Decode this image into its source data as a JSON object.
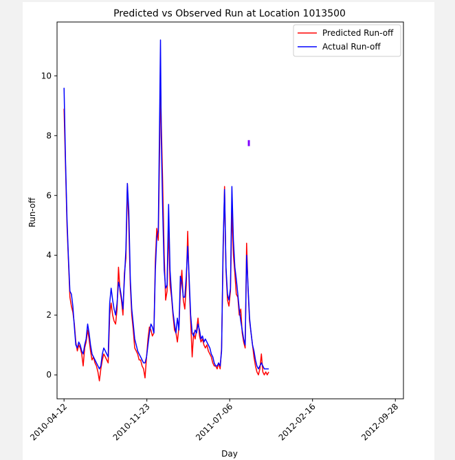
{
  "chart_data": {
    "type": "line",
    "title": "Predicted vs Observed Run at Location 1013500",
    "xlabel": "Day",
    "ylabel": "Run-off",
    "x_ticks": [
      "2010-04-12",
      "2010-11-23",
      "2011-07-06",
      "2012-02-16",
      "2012-09-28"
    ],
    "y_ticks": [
      0,
      2,
      4,
      6,
      8,
      10
    ],
    "xlim": [
      "2010-03-24",
      "2012-10-20"
    ],
    "ylim": [
      -0.8,
      11.8
    ],
    "grid": false,
    "legend_position": "top-right",
    "series": [
      {
        "name": "Predicted Run-off",
        "color": "#ff0000",
        "points": [
          [
            "2010-04-12",
            8.9
          ],
          [
            "2010-04-16",
            7.0
          ],
          [
            "2010-04-20",
            5.0
          ],
          [
            "2010-04-24",
            3.8
          ],
          [
            "2010-04-28",
            2.6
          ],
          [
            "2010-05-02",
            2.3
          ],
          [
            "2010-05-06",
            2.1
          ],
          [
            "2010-05-10",
            1.7
          ],
          [
            "2010-05-14",
            1.1
          ],
          [
            "2010-05-18",
            0.8
          ],
          [
            "2010-05-22",
            1.0
          ],
          [
            "2010-05-26",
            0.9
          ],
          [
            "2010-05-30",
            0.7
          ],
          [
            "2010-06-03",
            0.3
          ],
          [
            "2010-06-07",
            0.9
          ],
          [
            "2010-06-11",
            1.1
          ],
          [
            "2010-06-15",
            1.5
          ],
          [
            "2010-06-19",
            1.2
          ],
          [
            "2010-06-23",
            0.8
          ],
          [
            "2010-06-27",
            0.5
          ],
          [
            "2010-07-01",
            0.6
          ],
          [
            "2010-07-05",
            0.4
          ],
          [
            "2010-07-09",
            0.3
          ],
          [
            "2010-07-13",
            0.1
          ],
          [
            "2010-07-17",
            -0.2
          ],
          [
            "2010-07-21",
            0.2
          ],
          [
            "2010-07-25",
            0.5
          ],
          [
            "2010-07-29",
            0.7
          ],
          [
            "2010-08-02",
            0.6
          ],
          [
            "2010-08-06",
            0.5
          ],
          [
            "2010-08-10",
            0.4
          ],
          [
            "2010-08-14",
            2.0
          ],
          [
            "2010-08-18",
            2.4
          ],
          [
            "2010-08-22",
            2.0
          ],
          [
            "2010-08-26",
            1.8
          ],
          [
            "2010-08-30",
            1.7
          ],
          [
            "2010-09-03",
            2.2
          ],
          [
            "2010-09-07",
            3.6
          ],
          [
            "2010-09-11",
            2.8
          ],
          [
            "2010-09-15",
            2.5
          ],
          [
            "2010-09-19",
            2.0
          ],
          [
            "2010-09-23",
            3.4
          ],
          [
            "2010-09-27",
            3.9
          ],
          [
            "2010-10-01",
            6.4
          ],
          [
            "2010-10-05",
            5.0
          ],
          [
            "2010-10-09",
            3.0
          ],
          [
            "2010-10-13",
            2.0
          ],
          [
            "2010-10-17",
            1.5
          ],
          [
            "2010-10-21",
            0.9
          ],
          [
            "2010-10-25",
            0.8
          ],
          [
            "2010-10-29",
            0.7
          ],
          [
            "2010-11-02",
            0.5
          ],
          [
            "2010-11-06",
            0.5
          ],
          [
            "2010-11-10",
            0.3
          ],
          [
            "2010-11-14",
            0.2
          ],
          [
            "2010-11-18",
            -0.1
          ],
          [
            "2010-11-22",
            0.6
          ],
          [
            "2010-11-26",
            1.2
          ],
          [
            "2010-11-30",
            1.6
          ],
          [
            "2010-12-04",
            1.5
          ],
          [
            "2010-12-08",
            1.3
          ],
          [
            "2010-12-12",
            1.4
          ],
          [
            "2010-12-16",
            3.8
          ],
          [
            "2010-12-20",
            4.9
          ],
          [
            "2010-12-24",
            4.5
          ],
          [
            "2010-12-28",
            7.8
          ],
          [
            "2010-12-30",
            9.9
          ],
          [
            "2011-01-01",
            8.5
          ],
          [
            "2011-01-05",
            6.4
          ],
          [
            "2011-01-09",
            4.0
          ],
          [
            "2011-01-13",
            2.5
          ],
          [
            "2011-01-17",
            2.8
          ],
          [
            "2011-01-21",
            5.0
          ],
          [
            "2011-01-25",
            3.0
          ],
          [
            "2011-01-29",
            2.6
          ],
          [
            "2011-02-02",
            2.0
          ],
          [
            "2011-02-06",
            1.5
          ],
          [
            "2011-02-10",
            1.4
          ],
          [
            "2011-02-14",
            1.1
          ],
          [
            "2011-02-18",
            1.6
          ],
          [
            "2011-02-22",
            2.8
          ],
          [
            "2011-02-26",
            3.5
          ],
          [
            "2011-03-02",
            2.5
          ],
          [
            "2011-03-06",
            2.2
          ],
          [
            "2011-03-10",
            3.0
          ],
          [
            "2011-03-14",
            4.8
          ],
          [
            "2011-03-18",
            3.0
          ],
          [
            "2011-03-22",
            1.8
          ],
          [
            "2011-03-26",
            0.6
          ],
          [
            "2011-03-30",
            1.4
          ],
          [
            "2011-04-03",
            1.2
          ],
          [
            "2011-04-07",
            1.5
          ],
          [
            "2011-04-11",
            1.9
          ],
          [
            "2011-04-15",
            1.3
          ],
          [
            "2011-04-19",
            1.1
          ],
          [
            "2011-04-23",
            1.2
          ],
          [
            "2011-04-27",
            1.0
          ],
          [
            "2011-05-01",
            0.9
          ],
          [
            "2011-05-05",
            1.0
          ],
          [
            "2011-05-09",
            0.8
          ],
          [
            "2011-05-13",
            0.7
          ],
          [
            "2011-05-17",
            0.6
          ],
          [
            "2011-05-21",
            0.4
          ],
          [
            "2011-05-25",
            0.3
          ],
          [
            "2011-05-29",
            0.3
          ],
          [
            "2011-06-02",
            0.2
          ],
          [
            "2011-06-06",
            0.4
          ],
          [
            "2011-06-10",
            0.2
          ],
          [
            "2011-06-14",
            0.9
          ],
          [
            "2011-06-18",
            4.0
          ],
          [
            "2011-06-22",
            6.3
          ],
          [
            "2011-06-26",
            3.5
          ],
          [
            "2011-06-30",
            2.5
          ],
          [
            "2011-07-04",
            2.3
          ],
          [
            "2011-07-08",
            2.8
          ],
          [
            "2011-07-12",
            5.5
          ],
          [
            "2011-07-16",
            4.0
          ],
          [
            "2011-07-20",
            3.4
          ],
          [
            "2011-07-24",
            2.7
          ],
          [
            "2011-07-28",
            2.6
          ],
          [
            "2011-08-01",
            2.0
          ],
          [
            "2011-08-05",
            2.2
          ],
          [
            "2011-08-09",
            1.4
          ],
          [
            "2011-08-13",
            1.1
          ],
          [
            "2011-08-17",
            0.9
          ],
          [
            "2011-08-21",
            4.4
          ],
          [
            "2011-08-25",
            2.8
          ],
          [
            "2011-08-29",
            1.8
          ],
          [
            "2011-09-02",
            1.4
          ],
          [
            "2011-09-06",
            1.0
          ],
          [
            "2011-09-10",
            0.6
          ],
          [
            "2011-09-14",
            0.3
          ],
          [
            "2011-09-18",
            0.1
          ],
          [
            "2011-09-22",
            0.0
          ],
          [
            "2011-09-26",
            0.2
          ],
          [
            "2011-09-30",
            0.7
          ],
          [
            "2011-10-04",
            0.1
          ],
          [
            "2011-10-08",
            0.0
          ],
          [
            "2011-10-12",
            0.1
          ],
          [
            "2011-10-16",
            0.0
          ],
          [
            "2011-10-20",
            0.1
          ]
        ]
      },
      {
        "name": "Actual Run-off",
        "color": "#0000ff",
        "points": [
          [
            "2010-04-12",
            9.6
          ],
          [
            "2010-04-16",
            7.2
          ],
          [
            "2010-04-20",
            5.2
          ],
          [
            "2010-04-24",
            3.9
          ],
          [
            "2010-04-28",
            2.8
          ],
          [
            "2010-05-02",
            2.7
          ],
          [
            "2010-05-06",
            2.3
          ],
          [
            "2010-05-10",
            1.6
          ],
          [
            "2010-05-14",
            1.0
          ],
          [
            "2010-05-18",
            0.9
          ],
          [
            "2010-05-22",
            1.1
          ],
          [
            "2010-05-26",
            1.0
          ],
          [
            "2010-05-30",
            0.8
          ],
          [
            "2010-06-03",
            0.7
          ],
          [
            "2010-06-07",
            1.0
          ],
          [
            "2010-06-11",
            1.2
          ],
          [
            "2010-06-15",
            1.7
          ],
          [
            "2010-06-19",
            1.4
          ],
          [
            "2010-06-23",
            1.0
          ],
          [
            "2010-06-27",
            0.7
          ],
          [
            "2010-07-01",
            0.6
          ],
          [
            "2010-07-05",
            0.5
          ],
          [
            "2010-07-09",
            0.4
          ],
          [
            "2010-07-13",
            0.3
          ],
          [
            "2010-07-17",
            0.2
          ],
          [
            "2010-07-21",
            0.3
          ],
          [
            "2010-07-25",
            0.7
          ],
          [
            "2010-07-29",
            0.9
          ],
          [
            "2010-08-02",
            0.8
          ],
          [
            "2010-08-06",
            0.7
          ],
          [
            "2010-08-10",
            0.6
          ],
          [
            "2010-08-14",
            2.4
          ],
          [
            "2010-08-18",
            2.9
          ],
          [
            "2010-08-22",
            2.5
          ],
          [
            "2010-08-26",
            2.2
          ],
          [
            "2010-08-30",
            2.0
          ],
          [
            "2010-09-03",
            2.4
          ],
          [
            "2010-09-07",
            3.1
          ],
          [
            "2010-09-11",
            2.9
          ],
          [
            "2010-09-15",
            2.6
          ],
          [
            "2010-09-19",
            2.2
          ],
          [
            "2010-09-23",
            3.2
          ],
          [
            "2010-09-27",
            4.2
          ],
          [
            "2010-10-01",
            6.4
          ],
          [
            "2010-10-05",
            5.5
          ],
          [
            "2010-10-09",
            3.2
          ],
          [
            "2010-10-13",
            2.2
          ],
          [
            "2010-10-17",
            1.7
          ],
          [
            "2010-10-21",
            1.2
          ],
          [
            "2010-10-25",
            1.0
          ],
          [
            "2010-10-29",
            0.8
          ],
          [
            "2010-11-02",
            0.7
          ],
          [
            "2010-11-06",
            0.6
          ],
          [
            "2010-11-10",
            0.5
          ],
          [
            "2010-11-14",
            0.4
          ],
          [
            "2010-11-18",
            0.4
          ],
          [
            "2010-11-22",
            0.6
          ],
          [
            "2010-11-26",
            1.0
          ],
          [
            "2010-11-30",
            1.4
          ],
          [
            "2010-12-04",
            1.7
          ],
          [
            "2010-12-08",
            1.6
          ],
          [
            "2010-12-12",
            1.4
          ],
          [
            "2010-12-16",
            3.5
          ],
          [
            "2010-12-20",
            4.6
          ],
          [
            "2010-12-24",
            4.8
          ],
          [
            "2010-12-28",
            8.9
          ],
          [
            "2010-12-30",
            11.2
          ],
          [
            "2011-01-01",
            8.0
          ],
          [
            "2011-01-05",
            5.5
          ],
          [
            "2011-01-09",
            3.5
          ],
          [
            "2011-01-13",
            2.9
          ],
          [
            "2011-01-17",
            3.0
          ],
          [
            "2011-01-21",
            5.7
          ],
          [
            "2011-01-25",
            3.5
          ],
          [
            "2011-01-29",
            2.7
          ],
          [
            "2011-02-02",
            2.1
          ],
          [
            "2011-02-06",
            1.7
          ],
          [
            "2011-02-10",
            1.4
          ],
          [
            "2011-02-14",
            1.9
          ],
          [
            "2011-02-18",
            1.5
          ],
          [
            "2011-02-22",
            3.3
          ],
          [
            "2011-02-26",
            3.1
          ],
          [
            "2011-03-02",
            2.6
          ],
          [
            "2011-03-06",
            2.6
          ],
          [
            "2011-03-10",
            3.3
          ],
          [
            "2011-03-14",
            4.3
          ],
          [
            "2011-03-18",
            3.2
          ],
          [
            "2011-03-22",
            2.0
          ],
          [
            "2011-03-26",
            1.4
          ],
          [
            "2011-03-30",
            1.3
          ],
          [
            "2011-04-03",
            1.5
          ],
          [
            "2011-04-07",
            1.4
          ],
          [
            "2011-04-11",
            1.7
          ],
          [
            "2011-04-15",
            1.5
          ],
          [
            "2011-04-19",
            1.2
          ],
          [
            "2011-04-23",
            1.3
          ],
          [
            "2011-04-27",
            1.1
          ],
          [
            "2011-05-01",
            1.2
          ],
          [
            "2011-05-05",
            1.1
          ],
          [
            "2011-05-09",
            1.0
          ],
          [
            "2011-05-13",
            0.9
          ],
          [
            "2011-05-17",
            0.7
          ],
          [
            "2011-05-21",
            0.6
          ],
          [
            "2011-05-25",
            0.4
          ],
          [
            "2011-05-29",
            0.3
          ],
          [
            "2011-06-02",
            0.3
          ],
          [
            "2011-06-06",
            0.4
          ],
          [
            "2011-06-10",
            0.3
          ],
          [
            "2011-06-14",
            0.8
          ],
          [
            "2011-06-18",
            4.3
          ],
          [
            "2011-06-22",
            6.2
          ],
          [
            "2011-06-26",
            3.6
          ],
          [
            "2011-06-30",
            2.7
          ],
          [
            "2011-07-04",
            2.5
          ],
          [
            "2011-07-08",
            2.9
          ],
          [
            "2011-07-12",
            6.3
          ],
          [
            "2011-07-16",
            4.5
          ],
          [
            "2011-07-20",
            3.6
          ],
          [
            "2011-07-24",
            3.2
          ],
          [
            "2011-07-28",
            2.7
          ],
          [
            "2011-08-01",
            2.2
          ],
          [
            "2011-08-05",
            1.8
          ],
          [
            "2011-08-09",
            1.5
          ],
          [
            "2011-08-13",
            1.2
          ],
          [
            "2011-08-17",
            1.0
          ],
          [
            "2011-08-21",
            4.0
          ],
          [
            "2011-08-25",
            2.9
          ],
          [
            "2011-08-29",
            1.9
          ],
          [
            "2011-09-02",
            1.4
          ],
          [
            "2011-09-06",
            1.0
          ],
          [
            "2011-09-10",
            0.8
          ],
          [
            "2011-09-14",
            0.5
          ],
          [
            "2011-09-18",
            0.3
          ],
          [
            "2011-09-22",
            0.2
          ],
          [
            "2011-09-26",
            0.3
          ],
          [
            "2011-09-30",
            0.4
          ],
          [
            "2011-10-04",
            0.3
          ],
          [
            "2011-10-08",
            0.2
          ],
          [
            "2011-10-12",
            0.2
          ],
          [
            "2011-10-16",
            0.2
          ],
          [
            "2011-10-20",
            0.2
          ]
        ]
      }
    ],
    "annotations": [
      {
        "type": "marker",
        "color": "#8000ff",
        "x": "2011-08-27",
        "y": [
          7.65,
          7.85
        ]
      }
    ]
  }
}
